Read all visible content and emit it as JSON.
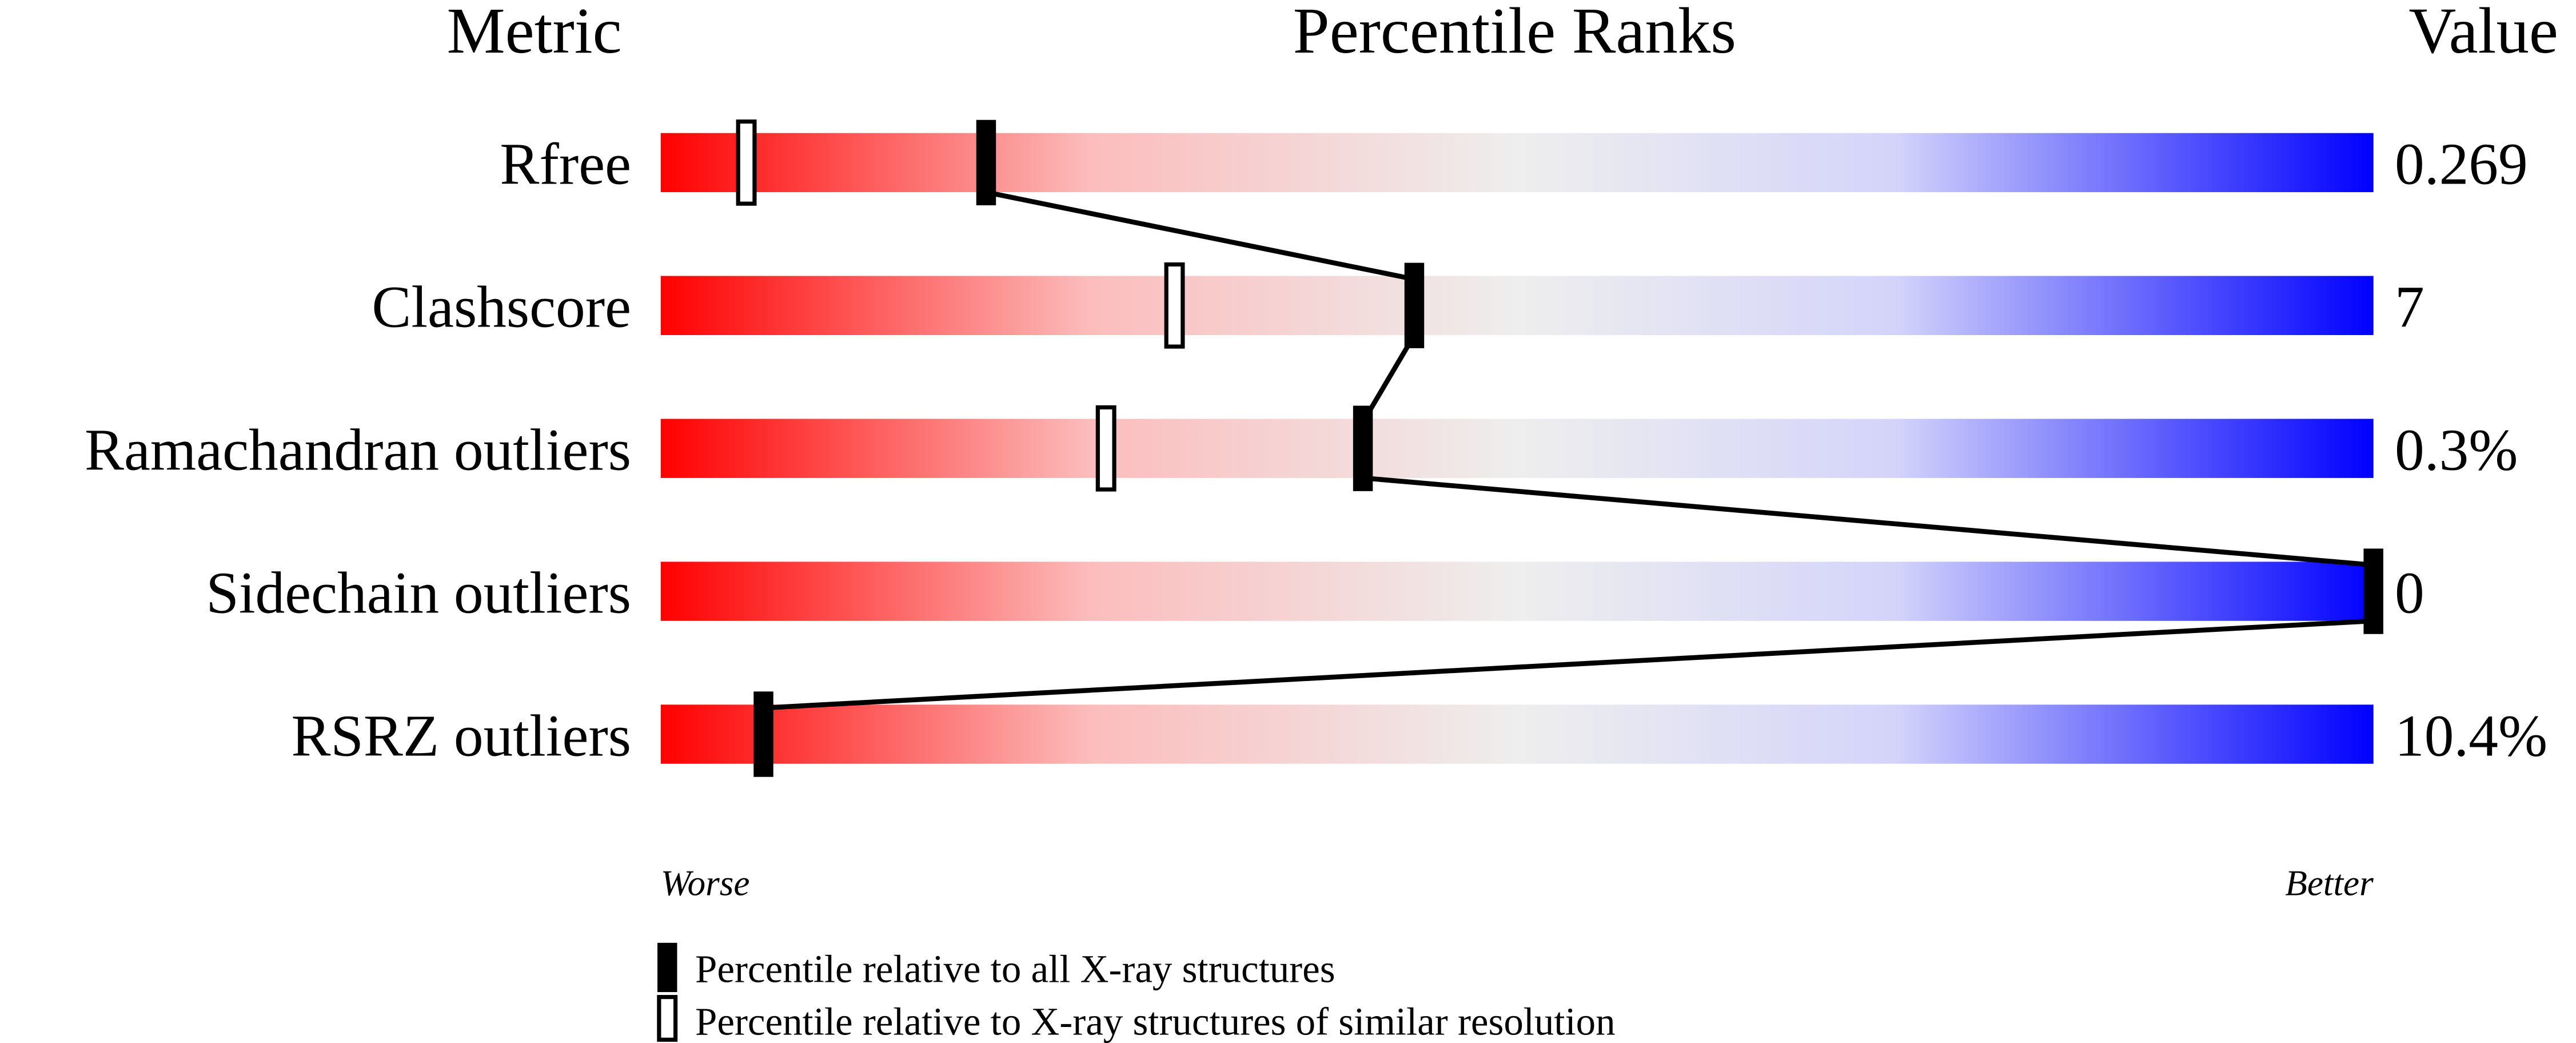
{
  "chart_data": {
    "type": "percentile-slider",
    "headers": {
      "metric": "Metric",
      "ranks": "Percentile Ranks",
      "value": "Value"
    },
    "xlim": [
      0,
      100
    ],
    "axis_labels": {
      "worse": "Worse",
      "better": "Better"
    },
    "rows": [
      {
        "metric": "Rfree",
        "value": "0.269",
        "percentile_all": 19,
        "percentile_similar": 5
      },
      {
        "metric": "Clashscore",
        "value": "7",
        "percentile_all": 44,
        "percentile_similar": 30
      },
      {
        "metric": "Ramachandran outliers",
        "value": "0.3%",
        "percentile_all": 41,
        "percentile_similar": 26
      },
      {
        "metric": "Sidechain outliers",
        "value": "0",
        "percentile_all": 100,
        "percentile_similar": null
      },
      {
        "metric": "RSRZ outliers",
        "value": "10.4%",
        "percentile_all": 6,
        "percentile_similar": null
      }
    ],
    "legend": {
      "all": "Percentile relative to all X-ray structures",
      "similar": "Percentile relative to X-ray structures of similar resolution"
    },
    "colors": {
      "worse": "#ff0000",
      "mid": "#eeeeee",
      "better": "#0000ff",
      "marker": "#000000"
    }
  }
}
